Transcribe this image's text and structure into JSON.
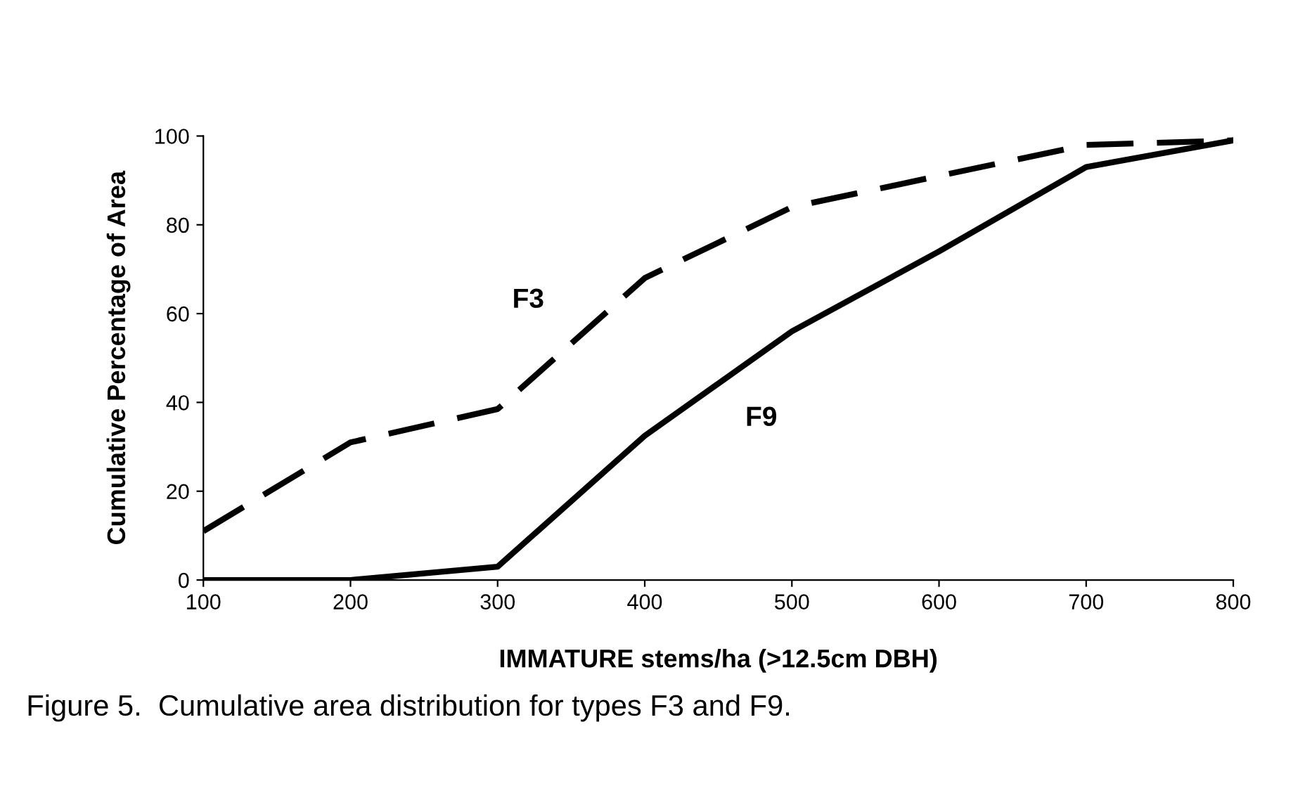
{
  "chart_data": {
    "type": "line",
    "xlabel": "IMMATURE stems/ha (>12.5cm DBH)",
    "ylabel": "Cumulative Percentage of Area",
    "x": [
      100,
      200,
      300,
      400,
      500,
      600,
      700,
      800
    ],
    "series": [
      {
        "name": "F3",
        "color": "#000000",
        "line_style": "dashed",
        "values": [
          11,
          31,
          38.5,
          68,
          84,
          91,
          98,
          99
        ]
      },
      {
        "name": "F9",
        "color": "#000000",
        "line_style": "solid",
        "values": [
          0,
          0,
          3,
          32.5,
          56,
          74,
          93,
          99
        ]
      }
    ],
    "xlim": [
      100,
      800
    ],
    "xticks": [
      100,
      200,
      300,
      400,
      500,
      600,
      700,
      800
    ],
    "ylim": [
      0,
      100
    ],
    "yticks": [
      0,
      20,
      40,
      60,
      80,
      100
    ],
    "grid": false,
    "legend": false,
    "marker": "none",
    "annotations": [
      "Figure 5.  Cumulative area distribution for types F3 and F9."
    ]
  }
}
